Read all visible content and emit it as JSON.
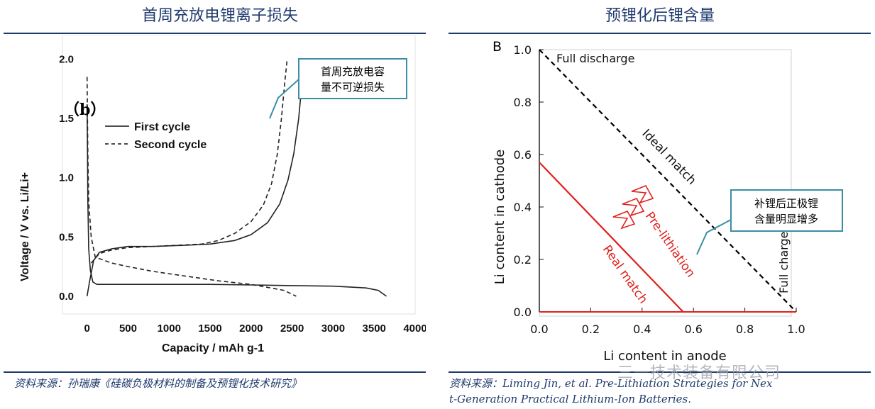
{
  "left": {
    "title": "首周充放电锂离子损失",
    "source": "资料来源：孙瑞康《硅碳负极材料的制备及预锂化技术研究》",
    "callout": [
      "首周充放电容",
      "量不可逆损失"
    ],
    "panel_label": "（b）"
  },
  "right": {
    "title": "预锂化后锂含量",
    "source_line1": "资料来源：Liming Jin, et al. Pre-Lithiation Strategies for Nex",
    "source_line2": "t-Generation Practical Lithium-Ion Batteries.",
    "callout": [
      "补锂后正极锂",
      "含量明显增多"
    ],
    "panel_label": "B",
    "watermark": "三一技术装备有限公司"
  },
  "chart_data": [
    {
      "type": "line",
      "title": "",
      "xlabel": "Capacity / mAh g-1",
      "ylabel": "Voltage / V vs. Li/Li+",
      "xlim": [
        -300,
        4000
      ],
      "ylim": [
        -0.15,
        2.2
      ],
      "xticks": [
        0,
        500,
        1000,
        1500,
        2000,
        2500,
        3000,
        3500,
        4000
      ],
      "yticks": [
        0.0,
        0.5,
        1.0,
        1.5,
        2.0
      ],
      "legend_position": "top-left",
      "series": [
        {
          "name": "First cycle",
          "style": "solid",
          "segments": [
            [
              [
                0,
                1.62
              ],
              [
                5,
                1.2
              ],
              [
                10,
                0.8
              ],
              [
                20,
                0.4
              ],
              [
                40,
                0.22
              ],
              [
                70,
                0.12
              ],
              [
                120,
                0.1
              ],
              [
                500,
                0.1
              ],
              [
                1000,
                0.1
              ],
              [
                1500,
                0.1
              ],
              [
                2000,
                0.095
              ],
              [
                2500,
                0.09
              ],
              [
                3000,
                0.085
              ],
              [
                3400,
                0.07
              ],
              [
                3550,
                0.05
              ],
              [
                3650,
                0.0
              ]
            ],
            [
              [
                0,
                0.0
              ],
              [
                30,
                0.12
              ],
              [
                80,
                0.3
              ],
              [
                150,
                0.37
              ],
              [
                300,
                0.4
              ],
              [
                500,
                0.42
              ],
              [
                800,
                0.42
              ],
              [
                1200,
                0.43
              ],
              [
                1500,
                0.44
              ],
              [
                1800,
                0.47
              ],
              [
                2000,
                0.52
              ],
              [
                2200,
                0.62
              ],
              [
                2350,
                0.78
              ],
              [
                2450,
                0.98
              ],
              [
                2520,
                1.2
              ],
              [
                2580,
                1.5
              ],
              [
                2620,
                1.8
              ],
              [
                2650,
                2.0
              ]
            ]
          ]
        },
        {
          "name": "Second cycle",
          "style": "dashed",
          "segments": [
            [
              [
                0,
                1.85
              ],
              [
                10,
                1.2
              ],
              [
                20,
                0.8
              ],
              [
                50,
                0.5
              ],
              [
                100,
                0.33
              ],
              [
                300,
                0.28
              ],
              [
                500,
                0.25
              ],
              [
                800,
                0.21
              ],
              [
                1200,
                0.17
              ],
              [
                1600,
                0.13
              ],
              [
                2000,
                0.1
              ],
              [
                2400,
                0.05
              ],
              [
                2550,
                0.0
              ]
            ],
            [
              [
                50,
                0.28
              ],
              [
                150,
                0.36
              ],
              [
                300,
                0.39
              ],
              [
                500,
                0.41
              ],
              [
                800,
                0.42
              ],
              [
                1100,
                0.43
              ],
              [
                1400,
                0.44
              ],
              [
                1600,
                0.47
              ],
              [
                1800,
                0.53
              ],
              [
                2000,
                0.63
              ],
              [
                2150,
                0.77
              ],
              [
                2250,
                0.95
              ],
              [
                2320,
                1.2
              ],
              [
                2370,
                1.5
              ],
              [
                2410,
                1.8
              ],
              [
                2440,
                2.0
              ]
            ]
          ]
        }
      ]
    },
    {
      "type": "line",
      "title": "",
      "xlabel": "Li content in anode",
      "ylabel": "Li content in cathode",
      "xlim": [
        0.0,
        1.0
      ],
      "ylim": [
        0.0,
        1.0
      ],
      "xticks": [
        0.0,
        0.2,
        0.4,
        0.6,
        0.8,
        1.0
      ],
      "yticks": [
        0.0,
        0.2,
        0.4,
        0.6,
        0.8,
        1.0
      ],
      "series": [
        {
          "name": "Ideal match",
          "style": "dashed",
          "color": "#000000",
          "points": [
            [
              0,
              1.0
            ],
            [
              1.0,
              0.0
            ]
          ]
        },
        {
          "name": "Real match",
          "style": "solid",
          "color": "#e0201b",
          "points": [
            [
              0,
              0.57
            ],
            [
              0.56,
              0.0
            ]
          ]
        },
        {
          "name": "",
          "style": "solid",
          "color": "#e0201b",
          "points": [
            [
              0,
              0.0
            ],
            [
              1.0,
              0.0
            ]
          ]
        }
      ],
      "annotations": [
        "Full discharge",
        "Full charge",
        "Ideal match",
        "Pre-lithiation",
        "Real match"
      ]
    }
  ]
}
